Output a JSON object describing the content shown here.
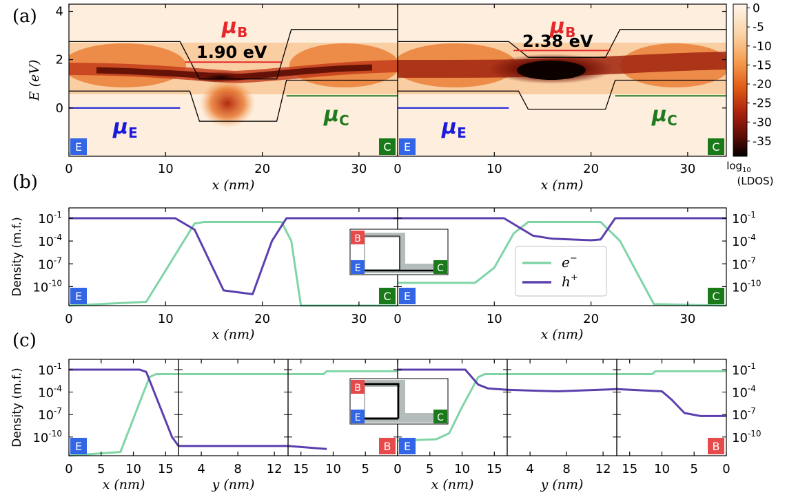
{
  "colors": {
    "electron": "#7fd4a6",
    "hole": "#5b3fae",
    "mu_E": "#1a1adb",
    "mu_C": "#1f7a1f",
    "mu_B": "#e5262b",
    "lead_E": "#3366e6",
    "lead_C": "#1a7a1a",
    "lead_B": "#e64a4a",
    "cmap": [
      "#000000",
      "#5c0d05",
      "#a8200e",
      "#e05b17",
      "#f59c4f",
      "#fbd3a6",
      "#fff6ea"
    ]
  },
  "icons": [
    "lead-E-badge",
    "lead-C-badge",
    "lead-B-badge",
    "device-schematic-icon"
  ],
  "panel_labels": {
    "a": "(a)",
    "b": "(b)",
    "c": "(c)"
  },
  "leads": {
    "E": "E",
    "C": "C",
    "B": "B"
  },
  "labels": {
    "mu_B": "μB",
    "mu_E": "μE",
    "mu_C": "μC",
    "energy_left": "1.90 eV",
    "energy_right": "2.38 eV",
    "mu_B_sym": "μ",
    "mu_B_sub": "B",
    "mu_E_sym": "μ",
    "mu_E_sub": "E",
    "mu_C_sym": "μ",
    "mu_C_sub": "C"
  },
  "colorbar": {
    "ticks": [
      "0",
      "-5",
      "-10",
      "-15",
      "-20",
      "-25",
      "-30",
      "-35"
    ],
    "values": [
      0,
      -5,
      -10,
      -15,
      -20,
      -25,
      -30,
      -35
    ],
    "range": [
      -39,
      1
    ],
    "label_line1": "log10",
    "label_line2": "(LDOS)",
    "label_log": "log",
    "label_sub": "10"
  },
  "chart_data": [
    {
      "panel": "(a) left",
      "type": "heatmap",
      "xlabel": "x (nm)",
      "ylabel": "E (eV)",
      "xlim": [
        0,
        34
      ],
      "ylim": [
        -2,
        4.3
      ],
      "xticks": [
        0,
        10,
        20,
        30
      ],
      "yticks": [
        0,
        2,
        4
      ],
      "band_edges": {
        "conduction": [
          [
            0,
            2.75
          ],
          [
            11.5,
            2.75
          ],
          [
            13.5,
            1.2
          ],
          [
            21.5,
            1.2
          ],
          [
            23,
            3.25
          ],
          [
            34,
            3.25
          ]
        ],
        "valence": [
          [
            0,
            0.7
          ],
          [
            12.5,
            0.7
          ],
          [
            13.5,
            -0.55
          ],
          [
            21.5,
            -0.55
          ],
          [
            22.5,
            1.15
          ],
          [
            34,
            1.15
          ]
        ]
      },
      "mu_E": 0.0,
      "mu_C": 0.5,
      "mu_B": 1.9,
      "mu_B_x": [
        12,
        22
      ],
      "annotation": "1.90 eV"
    },
    {
      "panel": "(a) right",
      "type": "heatmap",
      "xlabel": "x (nm)",
      "ylabel": "",
      "xlim": [
        0,
        34
      ],
      "ylim": [
        -2,
        4.3
      ],
      "xticks": [
        0,
        10,
        20,
        30
      ],
      "band_edges": {
        "conduction": [
          [
            0,
            2.75
          ],
          [
            11.5,
            2.75
          ],
          [
            13.5,
            2.1
          ],
          [
            21.5,
            2.1
          ],
          [
            23,
            3.25
          ],
          [
            34,
            3.25
          ]
        ],
        "valence": [
          [
            0,
            0.7
          ],
          [
            12.5,
            0.7
          ],
          [
            13.5,
            -0.05
          ],
          [
            21.5,
            -0.05
          ],
          [
            22.5,
            1.15
          ],
          [
            34,
            1.15
          ]
        ]
      },
      "mu_E": 0.0,
      "mu_C": 0.5,
      "mu_B": 2.38,
      "mu_B_x": [
        12,
        22
      ],
      "annotation": "2.38 eV"
    },
    {
      "panel": "(b) left",
      "type": "line",
      "log_y": true,
      "xlabel": "x (nm)",
      "ylabel": "Density (m.f.)",
      "xlim": [
        0,
        34
      ],
      "ylim_exp": [
        -12,
        -0.5
      ],
      "xticks": [
        0,
        10,
        20,
        30
      ],
      "ytick_labels": [
        "10-1",
        "10-4",
        "10-7",
        "10-10"
      ],
      "series": [
        {
          "name": "e−",
          "points": [
            [
              0,
              -16
            ],
            [
              8,
              -12
            ],
            [
              13,
              -1.7
            ],
            [
              14,
              -1.5
            ],
            [
              22,
              -1.5
            ],
            [
              23,
              -4
            ],
            [
              24,
              -14
            ],
            [
              34,
              -16
            ]
          ]
        },
        {
          "name": "h+",
          "points": [
            [
              0,
              -1.0
            ],
            [
              11,
              -1.0
            ],
            [
              13,
              -2.5
            ],
            [
              16,
              -10.5
            ],
            [
              19,
              -11
            ],
            [
              21,
              -4
            ],
            [
              22.5,
              -1.0
            ],
            [
              34,
              -1.0
            ]
          ]
        }
      ]
    },
    {
      "panel": "(b) right",
      "type": "line",
      "log_y": true,
      "xlabel": "x (nm)",
      "ylabel": "",
      "xlim": [
        0,
        34
      ],
      "ylim_exp": [
        -12,
        -0.5
      ],
      "xticks": [
        0,
        10,
        20,
        30
      ],
      "ytick_labels": [
        "10-1",
        "10-4",
        "10-7",
        "10-10"
      ],
      "series": [
        {
          "name": "e−",
          "points": [
            [
              0,
              -9.5
            ],
            [
              8,
              -9.5
            ],
            [
              10,
              -7.5
            ],
            [
              12,
              -3
            ],
            [
              13.5,
              -1.5
            ],
            [
              21,
              -1.5
            ],
            [
              23,
              -4
            ],
            [
              26.5,
              -12.3
            ],
            [
              34,
              -14
            ]
          ]
        },
        {
          "name": "h+",
          "points": [
            [
              0,
              -1.0
            ],
            [
              11,
              -1.0
            ],
            [
              14,
              -3.3
            ],
            [
              16,
              -3.7
            ],
            [
              20,
              -3.9
            ],
            [
              21,
              -3.8
            ],
            [
              22.5,
              -1.0
            ],
            [
              34,
              -1.0
            ]
          ]
        }
      ]
    },
    {
      "panel": "(c)",
      "type": "line",
      "log_y": true,
      "ylabel": "Density (m.f.)",
      "ylim_exp": [
        -12,
        -0.5
      ],
      "ytick_labels": [
        "10-1",
        "10-4",
        "10-7",
        "10-10"
      ],
      "subpanels": [
        {
          "xlabel": "x (nm)",
          "xlim": [
            0,
            17
          ],
          "xticks": [
            0,
            5,
            10,
            15
          ],
          "series": [
            {
              "name": "e−",
              "points": [
                [
                  0,
                  -15
                ],
                [
                  8,
                  -12
                ],
                [
                  12.5,
                  -2
                ],
                [
                  13.5,
                  -1.6
                ],
                [
                  17,
                  -1.6
                ]
              ]
            },
            {
              "name": "h+",
              "points": [
                [
                  0,
                  -1.0
                ],
                [
                  11,
                  -1.0
                ],
                [
                  12,
                  -1.3
                ],
                [
                  16,
                  -10
                ],
                [
                  17,
                  -11.2
                ]
              ]
            }
          ]
        },
        {
          "xlabel": "y (nm)",
          "xlim": [
            1.5,
            13.5
          ],
          "xticks": [
            4,
            8,
            12
          ],
          "series": [
            {
              "name": "e−",
              "points": [
                [
                  1.5,
                  -1.6
                ],
                [
                  13.5,
                  -1.6
                ]
              ]
            },
            {
              "name": "h+",
              "points": [
                [
                  1.5,
                  -11.2
                ],
                [
                  13.5,
                  -11.2
                ]
              ]
            }
          ]
        },
        {
          "xlabel": "",
          "xlim": [
            17,
            0
          ],
          "xticks": [
            15,
            10,
            5,
            0
          ],
          "series": [
            {
              "name": "e−",
              "points": [
                [
                  17,
                  -1.6
                ],
                [
                  11.5,
                  -1.6
                ],
                [
                  11,
                  -1.2
                ],
                [
                  0,
                  -1.2
                ]
              ]
            },
            {
              "name": "h+",
              "points": [
                [
                  17,
                  -11.2
                ],
                [
                  11,
                  -11.6
                ]
              ]
            }
          ]
        },
        {
          "xlabel": "x (nm)",
          "xlim": [
            0,
            17
          ],
          "xticks": [
            0,
            5,
            10,
            15
          ],
          "series": [
            {
              "name": "e−",
              "points": [
                [
                  0,
                  -10.5
                ],
                [
                  6,
                  -10.3
                ],
                [
                  8,
                  -9.5
                ],
                [
                  10,
                  -6
                ],
                [
                  12.5,
                  -2
                ],
                [
                  13.5,
                  -1.6
                ],
                [
                  17,
                  -1.6
                ]
              ]
            },
            {
              "name": "h+",
              "points": [
                [
                  0,
                  -1.0
                ],
                [
                  10.5,
                  -1.0
                ],
                [
                  12.5,
                  -3
                ],
                [
                  14,
                  -3.5
                ],
                [
                  17,
                  -3.7
                ]
              ]
            }
          ]
        },
        {
          "xlabel": "y (nm)",
          "xlim": [
            1.5,
            13.5
          ],
          "xticks": [
            4,
            8,
            12
          ],
          "series": [
            {
              "name": "e−",
              "points": [
                [
                  1.5,
                  -1.6
                ],
                [
                  13.5,
                  -1.6
                ]
              ]
            },
            {
              "name": "h+",
              "points": [
                [
                  1.5,
                  -3.7
                ],
                [
                  7,
                  -3.9
                ],
                [
                  13.5,
                  -3.6
                ]
              ]
            }
          ]
        },
        {
          "xlabel": "",
          "xlim": [
            17,
            0
          ],
          "xticks": [
            15,
            10,
            5,
            0
          ],
          "series": [
            {
              "name": "e−",
              "points": [
                [
                  17,
                  -1.6
                ],
                [
                  11.5,
                  -1.6
                ],
                [
                  11,
                  -1.2
                ],
                [
                  0,
                  -1.2
                ]
              ]
            },
            {
              "name": "h+",
              "points": [
                [
                  17,
                  -3.6
                ],
                [
                  10,
                  -3.9
                ],
                [
                  8.5,
                  -5
                ],
                [
                  6.5,
                  -6.8
                ],
                [
                  4,
                  -7.2
                ],
                [
                  0,
                  -7.2
                ]
              ]
            }
          ]
        }
      ]
    }
  ],
  "legend": {
    "electron": "e−",
    "hole": "h+",
    "e_sym": "e",
    "e_sup": "−",
    "h_sym": "h",
    "h_sup": "+"
  }
}
